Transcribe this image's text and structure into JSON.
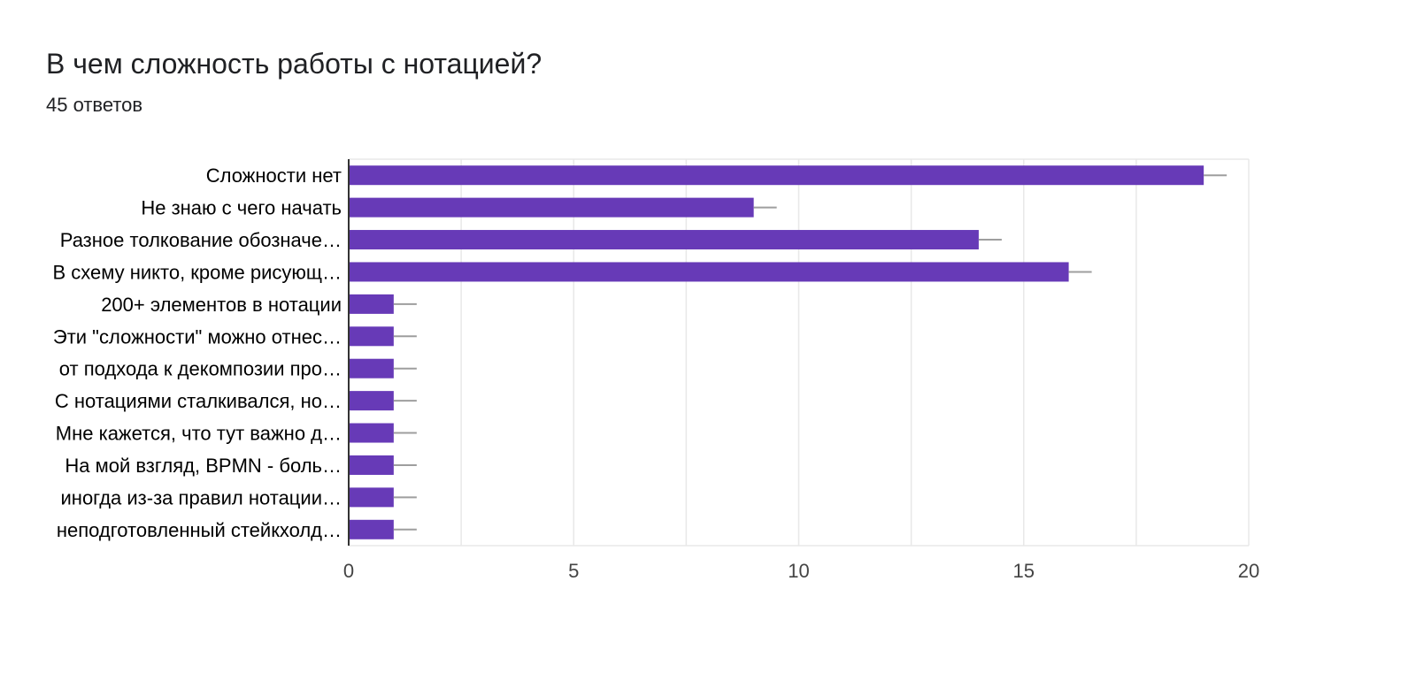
{
  "question": {
    "title": "В чем сложность работы с нотацией?",
    "responses": "45 ответов"
  },
  "chart_data": {
    "type": "bar",
    "orientation": "horizontal",
    "categories": [
      "Сложности нет",
      "Не знаю с чего начать",
      "Разное толкование обозначе…",
      "В схему никто, кроме рисующ…",
      "200+ элементов в нотации",
      "Эти \"сложности\" можно отнес…",
      "от подхода к декомпозии про…",
      "С нотациями сталкивался, но…",
      "Мне кажется, что тут важно д…",
      "На мой взгляд, BPMN - боль…",
      "иногда из-за правил нотации…",
      "неподготовленный стейкхолд…"
    ],
    "values": [
      19,
      9,
      14,
      16,
      1,
      1,
      1,
      1,
      1,
      1,
      1,
      1
    ],
    "xlim": [
      0,
      20
    ],
    "xticks": [
      0,
      5,
      10,
      15,
      20
    ],
    "grid": true,
    "bar_color": "#673ab7",
    "error_bar_color": "#9e9e9e",
    "grid_color": "#e8e8e8"
  }
}
